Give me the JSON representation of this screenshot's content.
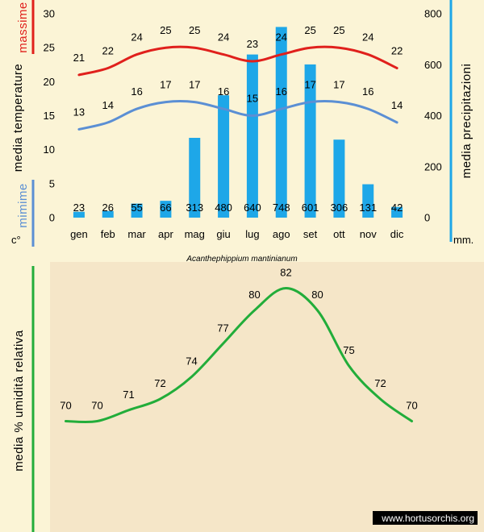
{
  "chart_data": [
    {
      "type": "bar+line",
      "categories": [
        "gen",
        "feb",
        "mar",
        "apr",
        "mag",
        "giu",
        "lug",
        "ago",
        "set",
        "ott",
        "nov",
        "dic"
      ],
      "series": [
        {
          "name": "massime",
          "type": "line",
          "axis": "left",
          "color": "#e0201c",
          "values": [
            21,
            22,
            24,
            25,
            25,
            24,
            23,
            24,
            25,
            25,
            24,
            22
          ]
        },
        {
          "name": "mimime",
          "type": "line",
          "axis": "left",
          "color": "#5b8fd4",
          "values": [
            13,
            14,
            16,
            17,
            17,
            16,
            15,
            16,
            17,
            17,
            16,
            14
          ]
        },
        {
          "name": "precipitazioni",
          "type": "bar",
          "axis": "right",
          "color": "#1ea7e8",
          "values": [
            23,
            26,
            55,
            66,
            313,
            480,
            640,
            748,
            601,
            306,
            131,
            42
          ]
        }
      ],
      "left_axis": {
        "title": "media  temperature",
        "unit": "c°",
        "ylim": [
          0,
          30
        ],
        "ticks": [
          0,
          5,
          10,
          15,
          20,
          25,
          30
        ]
      },
      "right_axis": {
        "title": "media  precipitazioni",
        "unit": "mm.",
        "ylim": [
          0,
          800
        ],
        "ticks": [
          0,
          200,
          400,
          600,
          800
        ],
        "color": "#1ea7e8"
      },
      "caption": "Acanthephippium mantinianum",
      "grid": false
    },
    {
      "type": "line",
      "categories": [
        "gen",
        "feb",
        "mar",
        "apr",
        "mag",
        "giu",
        "lug",
        "ago",
        "set",
        "ott",
        "nov",
        "dic"
      ],
      "series": [
        {
          "name": "umidità relativa",
          "color": "#22ad3a",
          "values": [
            70,
            70,
            71,
            72,
            74,
            77,
            80,
            82,
            80,
            75,
            72,
            70
          ]
        }
      ],
      "ylabel": "media % umidità relativa",
      "ylim": [
        60,
        84
      ],
      "grid": false
    }
  ],
  "watermark": "www.hortusorchis.org"
}
